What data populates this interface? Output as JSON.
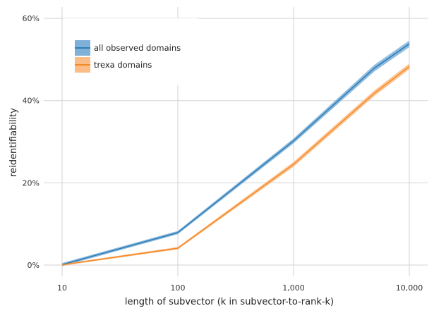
{
  "chart_data": {
    "type": "line",
    "xlabel": "length of subvector (k in subvector-to-rank-k)",
    "ylabel": "reidentifiability",
    "x_scale": "log",
    "xlim": [
      10,
      10000
    ],
    "ylim": [
      0,
      60
    ],
    "x_ticks": [
      {
        "value": 10,
        "label": "10"
      },
      {
        "value": 100,
        "label": "100"
      },
      {
        "value": 1000,
        "label": "1,000"
      },
      {
        "value": 10000,
        "label": "10,000"
      }
    ],
    "y_ticks": [
      {
        "value": 0,
        "label": "0%"
      },
      {
        "value": 20,
        "label": "20%"
      },
      {
        "value": 40,
        "label": "40%"
      },
      {
        "value": 60,
        "label": "60%"
      }
    ],
    "grid": true,
    "legend_position": "top-left",
    "series": [
      {
        "name": "all observed domains",
        "color": "#2e7fb8",
        "band_color": "#7eb0d8",
        "x": [
          10,
          100,
          1000,
          5000,
          10000
        ],
        "y": [
          0.1,
          7.9,
          30.2,
          47.9,
          53.8
        ],
        "band": [
          0.4,
          0.4,
          0.6,
          0.8,
          0.8
        ]
      },
      {
        "name": "trexa domains",
        "color": "#f5892a",
        "band_color": "#fbbd85",
        "x": [
          10,
          100,
          1000,
          5000,
          10000
        ],
        "y": [
          0.05,
          4.1,
          24.5,
          41.8,
          48.3
        ],
        "band": [
          0.2,
          0.3,
          0.6,
          0.7,
          0.7
        ]
      }
    ]
  }
}
